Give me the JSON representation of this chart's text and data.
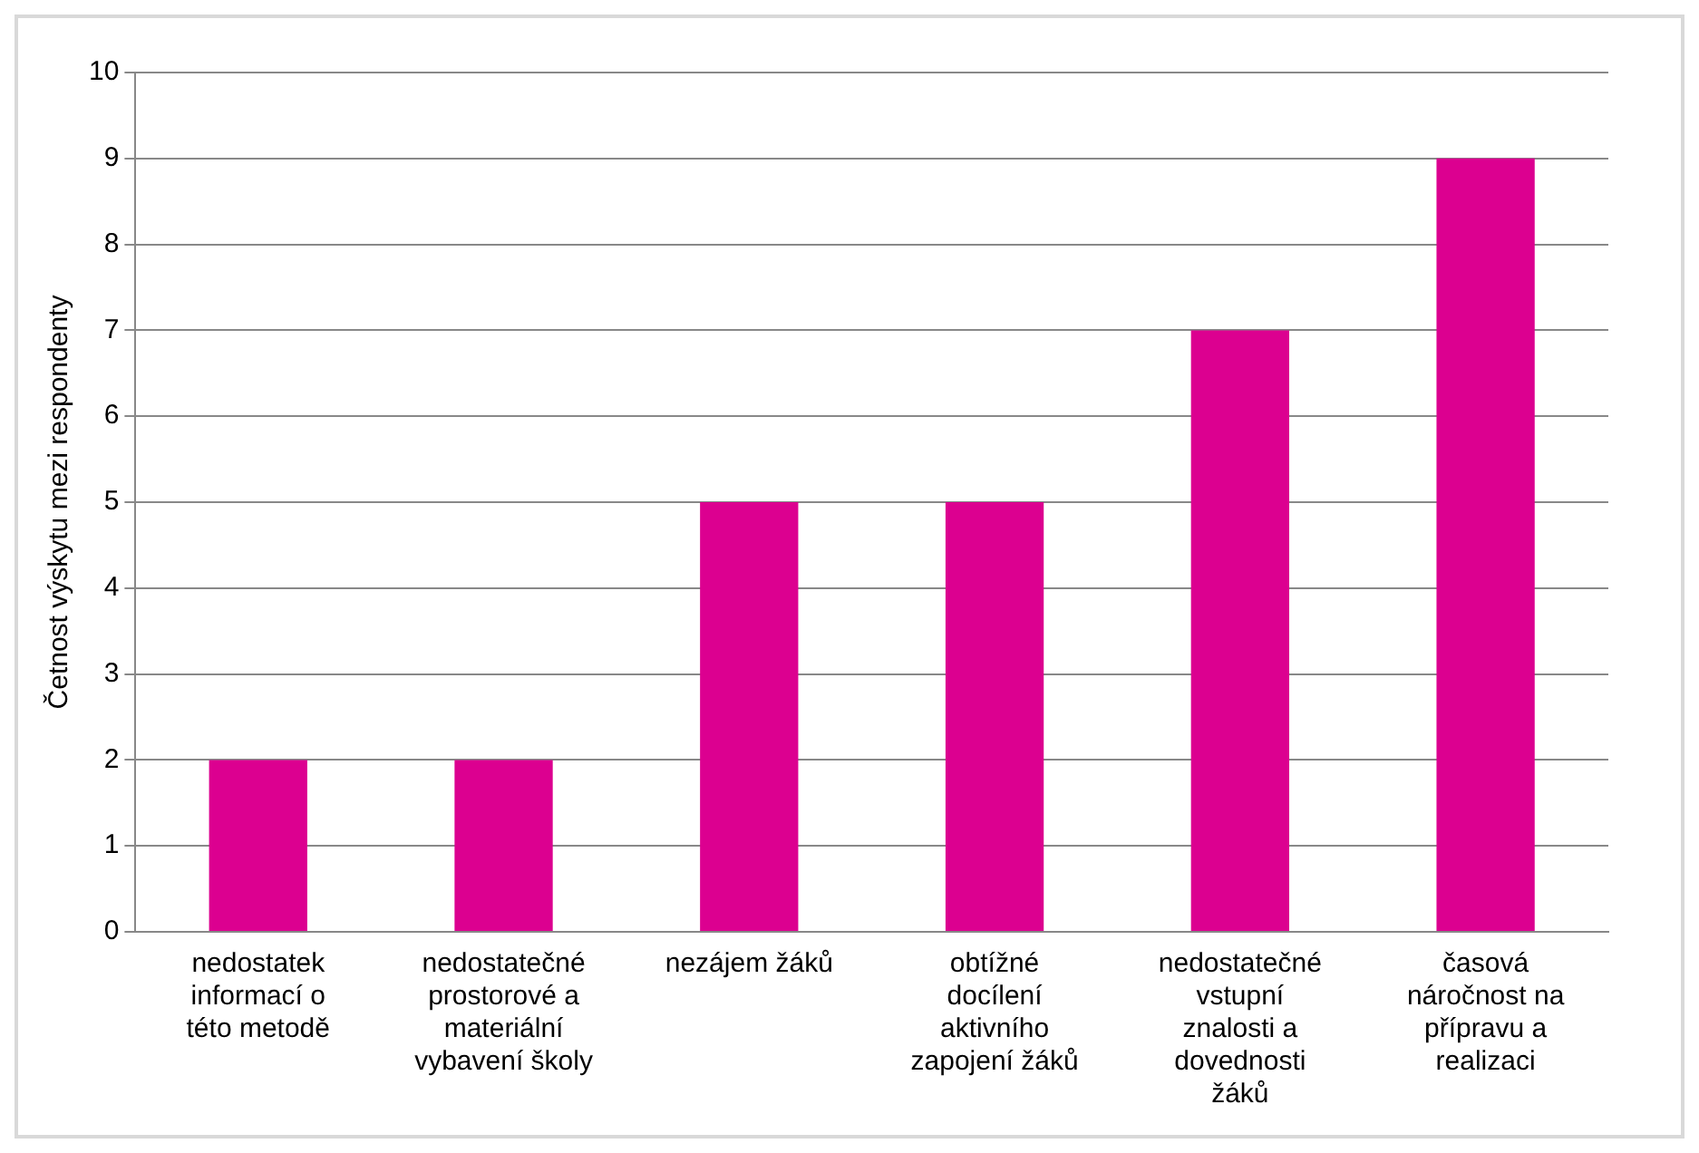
{
  "chart_data": {
    "type": "bar",
    "ylabel": "Četnost výskytu mezi respondenty",
    "categories": [
      "nedostatek informací o této metodě",
      "nedostatečné prostorové a materiální vybavení školy",
      "nezájem žáků",
      "obtížné docílení aktivního zapojení žáků",
      "nedostatečné vstupní znalosti a dovednosti žáků",
      "časová náročnost na přípravu a realizaci"
    ],
    "values": [
      2,
      2,
      5,
      5,
      7,
      9
    ],
    "color": "#dc0090",
    "ylim": [
      0,
      10
    ],
    "yticks": [
      0,
      1,
      2,
      3,
      4,
      5,
      6,
      7,
      8,
      9,
      10
    ],
    "grid": "y",
    "legend": false
  }
}
